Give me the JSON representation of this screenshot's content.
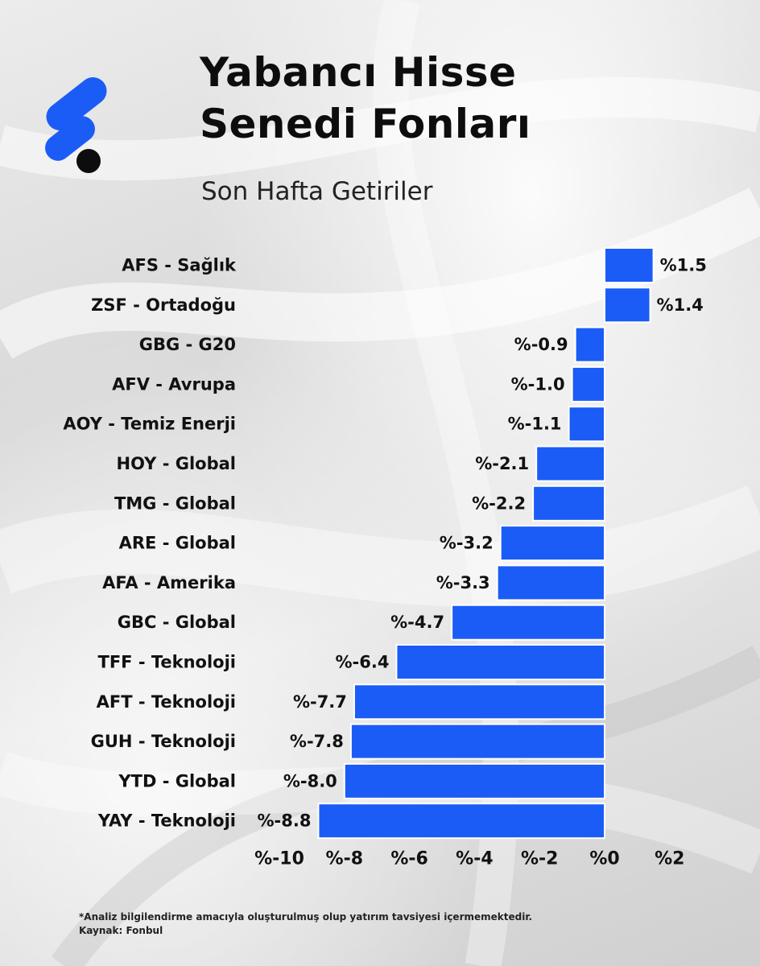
{
  "header": {
    "title_line1": "Yabancı Hisse",
    "title_line2": "Senedi Fonları",
    "subtitle": "Son Hafta Getiriler"
  },
  "colors": {
    "bar": "#1a5cf5",
    "text": "#111111"
  },
  "chart_data": {
    "type": "bar",
    "orientation": "horizontal",
    "title": "Yabancı Hisse Senedi Fonları",
    "subtitle": "Son Hafta Getiriler",
    "categories": [
      "AFS - Sağlık",
      "ZSF - Ortadoğu",
      "GBG - G20",
      "AFV - Avrupa",
      "AOY - Temiz Enerji",
      "HOY - Global",
      "TMG - Global",
      "ARE - Global",
      "AFA - Amerika",
      "GBC - Global",
      "TFF - Teknoloji",
      "AFT - Teknoloji",
      "GUH - Teknoloji",
      "YTD - Global",
      "YAY - Teknoloji"
    ],
    "values": [
      1.5,
      1.4,
      -0.9,
      -1.0,
      -1.1,
      -2.1,
      -2.2,
      -3.2,
      -3.3,
      -4.7,
      -6.4,
      -7.7,
      -7.8,
      -8.0,
      -8.8
    ],
    "value_labels": [
      "%1.5",
      "%1.4",
      "%-0.9",
      "%-1.0",
      "%-1.1",
      "%-2.1",
      "%-2.2",
      "%-3.2",
      "%-3.3",
      "%-4.7",
      "%-6.4",
      "%-7.7",
      "%-7.8",
      "%-8.0",
      "%-8.8"
    ],
    "x_ticks": [
      -10,
      -8,
      -6,
      -4,
      -2,
      0,
      2
    ],
    "x_tick_labels": [
      "%-10",
      "%-8",
      "%-6",
      "%-4",
      "%-2",
      "%0",
      "%2"
    ],
    "xlim": [
      -10,
      2
    ],
    "grid": false
  },
  "footer": {
    "disclaimer": "*Analiz bilgilendirme amacıyla oluşturulmuş olup yatırım tavsiyesi içermemektedir.",
    "source": "Kaynak: Fonbul"
  }
}
